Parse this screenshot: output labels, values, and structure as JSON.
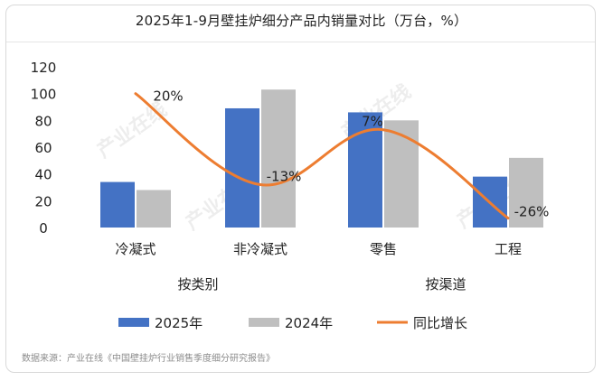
{
  "chart_data": {
    "type": "bar",
    "title": "2025年1-9月壁挂炉细分产品内销量对比（万台，%）",
    "categories": [
      "冷凝式",
      "非冷凝式",
      "零售",
      "工程"
    ],
    "groups": [
      {
        "label": "按类别",
        "categories": [
          "冷凝式",
          "非冷凝式"
        ]
      },
      {
        "label": "按渠道",
        "categories": [
          "零售",
          "工程"
        ]
      }
    ],
    "series": [
      {
        "name": "2025年",
        "type": "bar",
        "color": "#4472C4",
        "values": [
          34,
          89,
          86,
          38
        ]
      },
      {
        "name": "2024年",
        "type": "bar",
        "color": "#BFBFBF",
        "values": [
          28,
          103,
          80,
          52
        ]
      },
      {
        "name": "同比增长",
        "type": "line",
        "color": "#ED7D31",
        "values": [
          20,
          -13,
          7,
          -26
        ],
        "labels": [
          "20%",
          "-13%",
          "7%",
          "-26%"
        ],
        "plotted_on_left_axis": [
          100,
          32,
          73,
          7
        ]
      }
    ],
    "ylim": [
      0,
      120
    ],
    "yticks": [
      0,
      20,
      40,
      60,
      80,
      100,
      120
    ],
    "grid": false,
    "legend": "bottom",
    "xlabel": "",
    "ylabel": ""
  },
  "watermark": "产业在线",
  "source": "数据来源：产业在线《中国壁挂炉行业销售季度细分研究报告》"
}
